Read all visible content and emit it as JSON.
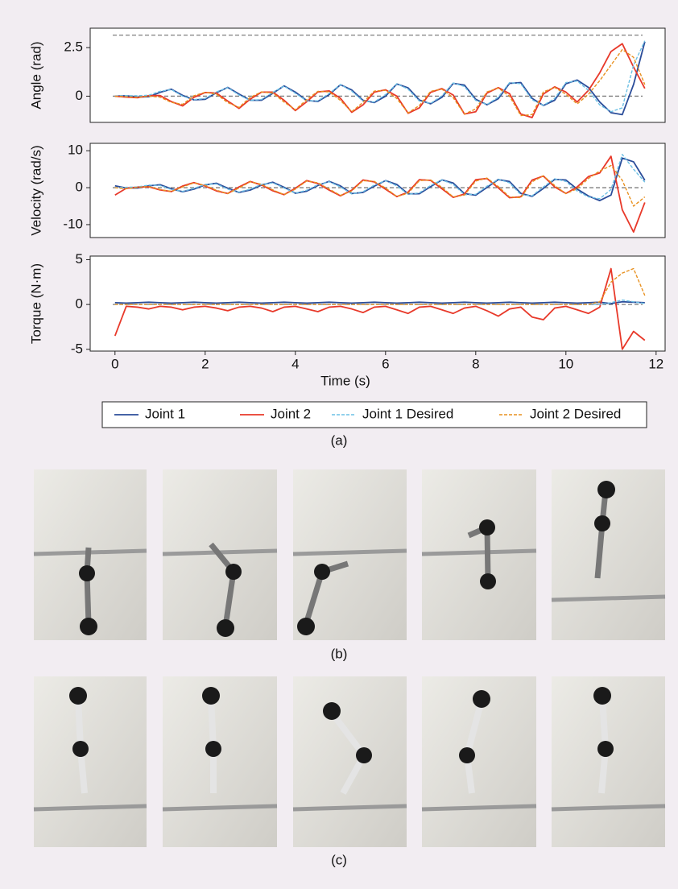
{
  "chart_data": [
    {
      "type": "line",
      "ylabel": "Angle (rad)",
      "x": [
        0,
        0.25,
        0.5,
        0.75,
        1,
        1.25,
        1.5,
        1.75,
        2,
        2.25,
        2.5,
        2.75,
        3,
        3.25,
        3.5,
        3.75,
        4,
        4.25,
        4.5,
        4.75,
        5,
        5.25,
        5.5,
        5.75,
        6,
        6.25,
        6.5,
        6.75,
        7,
        7.25,
        7.5,
        7.75,
        8,
        8.25,
        8.5,
        8.75,
        9,
        9.25,
        9.5,
        9.75,
        10,
        10.25,
        10.5,
        10.75,
        11,
        11.25,
        11.5,
        11.75
      ],
      "xlim": [
        -0.55,
        12.2
      ],
      "ylim": [
        -1.35,
        3.5
      ],
      "yticks": [
        0,
        2.5
      ],
      "hlines": [
        3.1416,
        0
      ],
      "hline_color": "#7f7f7f",
      "series": [
        {
          "color": "#2b4d9a",
          "dashed": false,
          "values": [
            0,
            0.02,
            -0.05,
            -0.03,
            0.2,
            0.36,
            0.04,
            -0.19,
            -0.16,
            0.18,
            0.45,
            0.11,
            -0.21,
            -0.21,
            0.15,
            0.53,
            0.21,
            -0.22,
            -0.27,
            0.08,
            0.59,
            0.32,
            -0.21,
            -0.33,
            0,
            0.63,
            0.43,
            -0.2,
            -0.39,
            -0.06,
            0.66,
            0.57,
            -0.16,
            -0.44,
            -0.13,
            0.66,
            0.7,
            -0.11,
            -0.48,
            -0.21,
            0.64,
            0.83,
            0.45,
            -0.3,
            -0.85,
            -0.95,
            0.6,
            2.8
          ]
        },
        {
          "color": "#e8392a",
          "dashed": false,
          "values": [
            0,
            -0.05,
            -0.08,
            0.03,
            0.03,
            -0.28,
            -0.5,
            -0.06,
            0.19,
            0.16,
            -0.25,
            -0.63,
            -0.15,
            0.21,
            0.21,
            -0.21,
            -0.74,
            -0.29,
            0.22,
            0.27,
            -0.11,
            -0.83,
            -0.45,
            0.21,
            0.33,
            0,
            -0.88,
            -0.6,
            0.2,
            0.39,
            0.06,
            -0.92,
            -0.8,
            0.16,
            0.44,
            0.13,
            -0.92,
            -1.1,
            0.11,
            0.48,
            0.21,
            -0.3,
            0.3,
            1.2,
            2.3,
            2.7,
            1.5,
            0.4
          ]
        },
        {
          "color": "#6cc0e5",
          "dashed": true,
          "values": [
            0,
            0.03,
            0.02,
            0.05,
            0.25,
            0.34,
            0,
            -0.18,
            -0.12,
            0.22,
            0.44,
            0.06,
            -0.22,
            -0.17,
            0.2,
            0.52,
            0.15,
            -0.24,
            -0.24,
            0.14,
            0.6,
            0.26,
            -0.25,
            -0.3,
            0.08,
            0.64,
            0.36,
            -0.25,
            -0.37,
            0.02,
            0.68,
            0.5,
            -0.22,
            -0.43,
            -0.05,
            0.7,
            0.64,
            -0.19,
            -0.47,
            -0.12,
            0.7,
            0.78,
            0.3,
            -0.45,
            -0.8,
            -0.6,
            1.6,
            2.85
          ]
        },
        {
          "color": "#e8901e",
          "dashed": true,
          "values": [
            0,
            -0.03,
            -0.06,
            0,
            -0.05,
            -0.32,
            -0.42,
            0.02,
            0.2,
            0.1,
            -0.33,
            -0.58,
            -0.06,
            0.22,
            0.16,
            -0.3,
            -0.7,
            -0.18,
            0.25,
            0.22,
            -0.22,
            -0.8,
            -0.32,
            0.26,
            0.3,
            -0.12,
            -0.86,
            -0.48,
            0.25,
            0.36,
            -0.08,
            -0.92,
            -0.66,
            0.22,
            0.42,
            0,
            -1,
            -0.95,
            0.22,
            0.45,
            0.1,
            -0.4,
            0.1,
            0.8,
            1.6,
            2.4,
            2,
            0.6
          ]
        }
      ]
    },
    {
      "type": "line",
      "ylabel": "Velocity (rad/s)",
      "x": [
        0,
        0.25,
        0.5,
        0.75,
        1,
        1.25,
        1.5,
        1.75,
        2,
        2.25,
        2.5,
        2.75,
        3,
        3.25,
        3.5,
        3.75,
        4,
        4.25,
        4.5,
        4.75,
        5,
        5.25,
        5.5,
        5.75,
        6,
        6.25,
        6.5,
        6.75,
        7,
        7.25,
        7.5,
        7.75,
        8,
        8.25,
        8.5,
        8.75,
        9,
        9.25,
        9.5,
        9.75,
        10,
        10.25,
        10.5,
        10.75,
        11,
        11.25,
        11.5,
        11.75
      ],
      "xlim": [
        -0.55,
        12.2
      ],
      "ylim": [
        -13.5,
        12
      ],
      "yticks": [
        -10,
        0,
        10
      ],
      "hlines": [
        0
      ],
      "hline_color": "#7f7f7f",
      "series": [
        {
          "color": "#2b4d9a",
          "dashed": false,
          "values": [
            0.5,
            -0.1,
            -0.1,
            0.5,
            0.8,
            -0.32,
            -1.1,
            -0.4,
            0.74,
            1.2,
            -0.14,
            -1.3,
            -0.64,
            0.72,
            1.48,
            0.12,
            -1.5,
            -0.96,
            0.6,
            1.72,
            0.48,
            -1.6,
            -1.3,
            0.42,
            1.92,
            0.86,
            -1.66,
            -1.64,
            0.28,
            2.1,
            1.26,
            -1.64,
            -2.02,
            0.06,
            2.2,
            1.66,
            -1.54,
            -2.36,
            -0.2,
            2.24,
            2.08,
            -0.38,
            -2.26,
            -3.5,
            -2,
            8,
            7,
            2
          ]
        },
        {
          "color": "#e8392a",
          "dashed": false,
          "values": [
            -2,
            -0.16,
            0.16,
            0.22,
            -0.62,
            -1.06,
            0.44,
            1.38,
            0.44,
            -0.88,
            -1.58,
            0.2,
            1.68,
            0.72,
            -0.84,
            -1.9,
            -0.16,
            1.92,
            1.12,
            -0.66,
            -2.2,
            -0.68,
            2.08,
            1.56,
            -0.42,
            -2.42,
            -1.2,
            2.16,
            1.98,
            -0.28,
            -2.62,
            -1.72,
            2.16,
            2.48,
            -0.06,
            -2.72,
            -2.46,
            2.06,
            3.16,
            0.2,
            -1.56,
            0.2,
            3,
            4,
            8.5,
            -6,
            -12,
            -4
          ]
        },
        {
          "color": "#6cc0e5",
          "dashed": true,
          "values": [
            0,
            0.1,
            0.2,
            0.7,
            0.6,
            -0.5,
            -1,
            -0.2,
            0.9,
            1,
            -0.4,
            -1.2,
            -0.4,
            0.9,
            1.3,
            -0.1,
            -1.5,
            -0.7,
            0.8,
            1.6,
            0.2,
            -1.7,
            -1.1,
            0.7,
            1.9,
            0.5,
            -1.8,
            -1.4,
            0.6,
            2.1,
            0.9,
            -1.9,
            -1.8,
            0.4,
            2.3,
            1.3,
            -1.9,
            -2.2,
            0.2,
            2.4,
            1.7,
            -0.9,
            -2.5,
            -3,
            -0.5,
            9,
            5,
            1.5
          ]
        },
        {
          "color": "#e8901e",
          "dashed": true,
          "values": [
            0,
            -0.3,
            0.1,
            0.3,
            -0.5,
            -1,
            0.2,
            1.3,
            0.6,
            -0.7,
            -1.6,
            -0.1,
            1.6,
            0.9,
            -0.6,
            -1.9,
            -0.4,
            1.8,
            1.3,
            -0.4,
            -2.1,
            -0.9,
            1.9,
            1.7,
            -0.1,
            -2.4,
            -1.5,
            1.9,
            2.1,
            0.1,
            -2.5,
            -2,
            1.8,
            2.6,
            0.3,
            -2.5,
            -2.7,
            1.6,
            3.2,
            0.6,
            -1.6,
            -0.3,
            2.5,
            4.5,
            6,
            2,
            -5,
            -2.5
          ]
        }
      ]
    },
    {
      "type": "line",
      "ylabel": "Torque (N·m)",
      "xlabel": "Time (s)",
      "x": [
        0,
        0.25,
        0.5,
        0.75,
        1,
        1.25,
        1.5,
        1.75,
        2,
        2.25,
        2.5,
        2.75,
        3,
        3.25,
        3.5,
        3.75,
        4,
        4.25,
        4.5,
        4.75,
        5,
        5.25,
        5.5,
        5.75,
        6,
        6.25,
        6.5,
        6.75,
        7,
        7.25,
        7.5,
        7.75,
        8,
        8.25,
        8.5,
        8.75,
        9,
        9.25,
        9.5,
        9.75,
        10,
        10.25,
        10.5,
        10.75,
        11,
        11.25,
        11.5,
        11.75
      ],
      "xlim": [
        -0.55,
        12.2
      ],
      "xticks": [
        0,
        2,
        4,
        6,
        8,
        10,
        12
      ],
      "ylim": [
        -5.2,
        5.4
      ],
      "yticks": [
        -5,
        0,
        5
      ],
      "hlines": [
        0
      ],
      "hline_color": "#7f7f7f",
      "series": [
        {
          "name": "Joint 1",
          "color": "#2b4d9a",
          "dashed": false,
          "values": [
            0.2,
            0.15,
            0.2,
            0.25,
            0.2,
            0.15,
            0.2,
            0.25,
            0.2,
            0.15,
            0.2,
            0.25,
            0.2,
            0.15,
            0.2,
            0.25,
            0.2,
            0.15,
            0.2,
            0.25,
            0.2,
            0.15,
            0.2,
            0.25,
            0.2,
            0.15,
            0.2,
            0.25,
            0.2,
            0.15,
            0.2,
            0.25,
            0.2,
            0.15,
            0.2,
            0.25,
            0.2,
            0.15,
            0.2,
            0.25,
            0.2,
            0.15,
            0.2,
            0.25,
            0.1,
            0.3,
            0.25,
            0.2
          ]
        },
        {
          "name": "Joint 2",
          "color": "#e8392a",
          "dashed": false,
          "values": [
            -3.5,
            -0.2,
            -0.3,
            -0.5,
            -0.2,
            -0.3,
            -0.6,
            -0.3,
            -0.2,
            -0.4,
            -0.7,
            -0.3,
            -0.2,
            -0.4,
            -0.8,
            -0.3,
            -0.2,
            -0.5,
            -0.8,
            -0.3,
            -0.2,
            -0.5,
            -0.9,
            -0.3,
            -0.2,
            -0.6,
            -1,
            -0.3,
            -0.2,
            -0.6,
            -1,
            -0.4,
            -0.2,
            -0.7,
            -1.3,
            -0.5,
            -0.3,
            -1.4,
            -1.7,
            -0.4,
            -0.2,
            -0.6,
            -1,
            -0.3,
            4,
            -5,
            -3,
            -4
          ]
        },
        {
          "name": "Joint 1 Desired",
          "color": "#6cc0e5",
          "dashed": true,
          "values": [
            0,
            0,
            0,
            0,
            0,
            0,
            0,
            0,
            0,
            0,
            0,
            0,
            0,
            0,
            0,
            0,
            0,
            0,
            0,
            0,
            0,
            0,
            0,
            0,
            0,
            0,
            0,
            0,
            0,
            0,
            0,
            0,
            0,
            0,
            0,
            0,
            0,
            0,
            0,
            0,
            0,
            0,
            0,
            0,
            0.2,
            0.5,
            0.3,
            0.1
          ]
        },
        {
          "name": "Joint 2 Desired",
          "color": "#e8901e",
          "dashed": true,
          "values": [
            0,
            0,
            0,
            0,
            0,
            0,
            0,
            0,
            0,
            0,
            0,
            0,
            0,
            0,
            0,
            0,
            0,
            0,
            0,
            0,
            0,
            0,
            0,
            0,
            0,
            0,
            0,
            0,
            0,
            0,
            0,
            0,
            0,
            0,
            0,
            0,
            0,
            0,
            0,
            0,
            0,
            0,
            0,
            0.3,
            2.5,
            3.5,
            4,
            1
          ]
        }
      ]
    }
  ],
  "captions": {
    "a": "(a)",
    "b": "(b)",
    "c": "(c)"
  }
}
